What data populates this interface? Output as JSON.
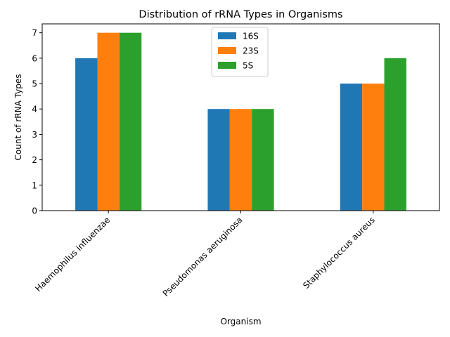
{
  "chart_data": {
    "type": "bar",
    "title": "Distribution of rRNA Types in Organisms",
    "xlabel": "Organism",
    "ylabel": "Count of rRNA Types",
    "categories": [
      "Haemophilus influenzae",
      "Pseudomonas aeruginosa",
      "Staphylococcus aureus"
    ],
    "series": [
      {
        "name": "16S",
        "values": [
          6,
          4,
          5
        ],
        "color": "#1f77b4"
      },
      {
        "name": "23S",
        "values": [
          7,
          4,
          5
        ],
        "color": "#ff7f0e"
      },
      {
        "name": "5S",
        "values": [
          7,
          4,
          6
        ],
        "color": "#2ca02c"
      }
    ],
    "ylim": [
      0,
      7.35
    ],
    "yticks": [
      0,
      1,
      2,
      3,
      4,
      5,
      6,
      7
    ],
    "grid": false,
    "legend_position": "top-center"
  }
}
